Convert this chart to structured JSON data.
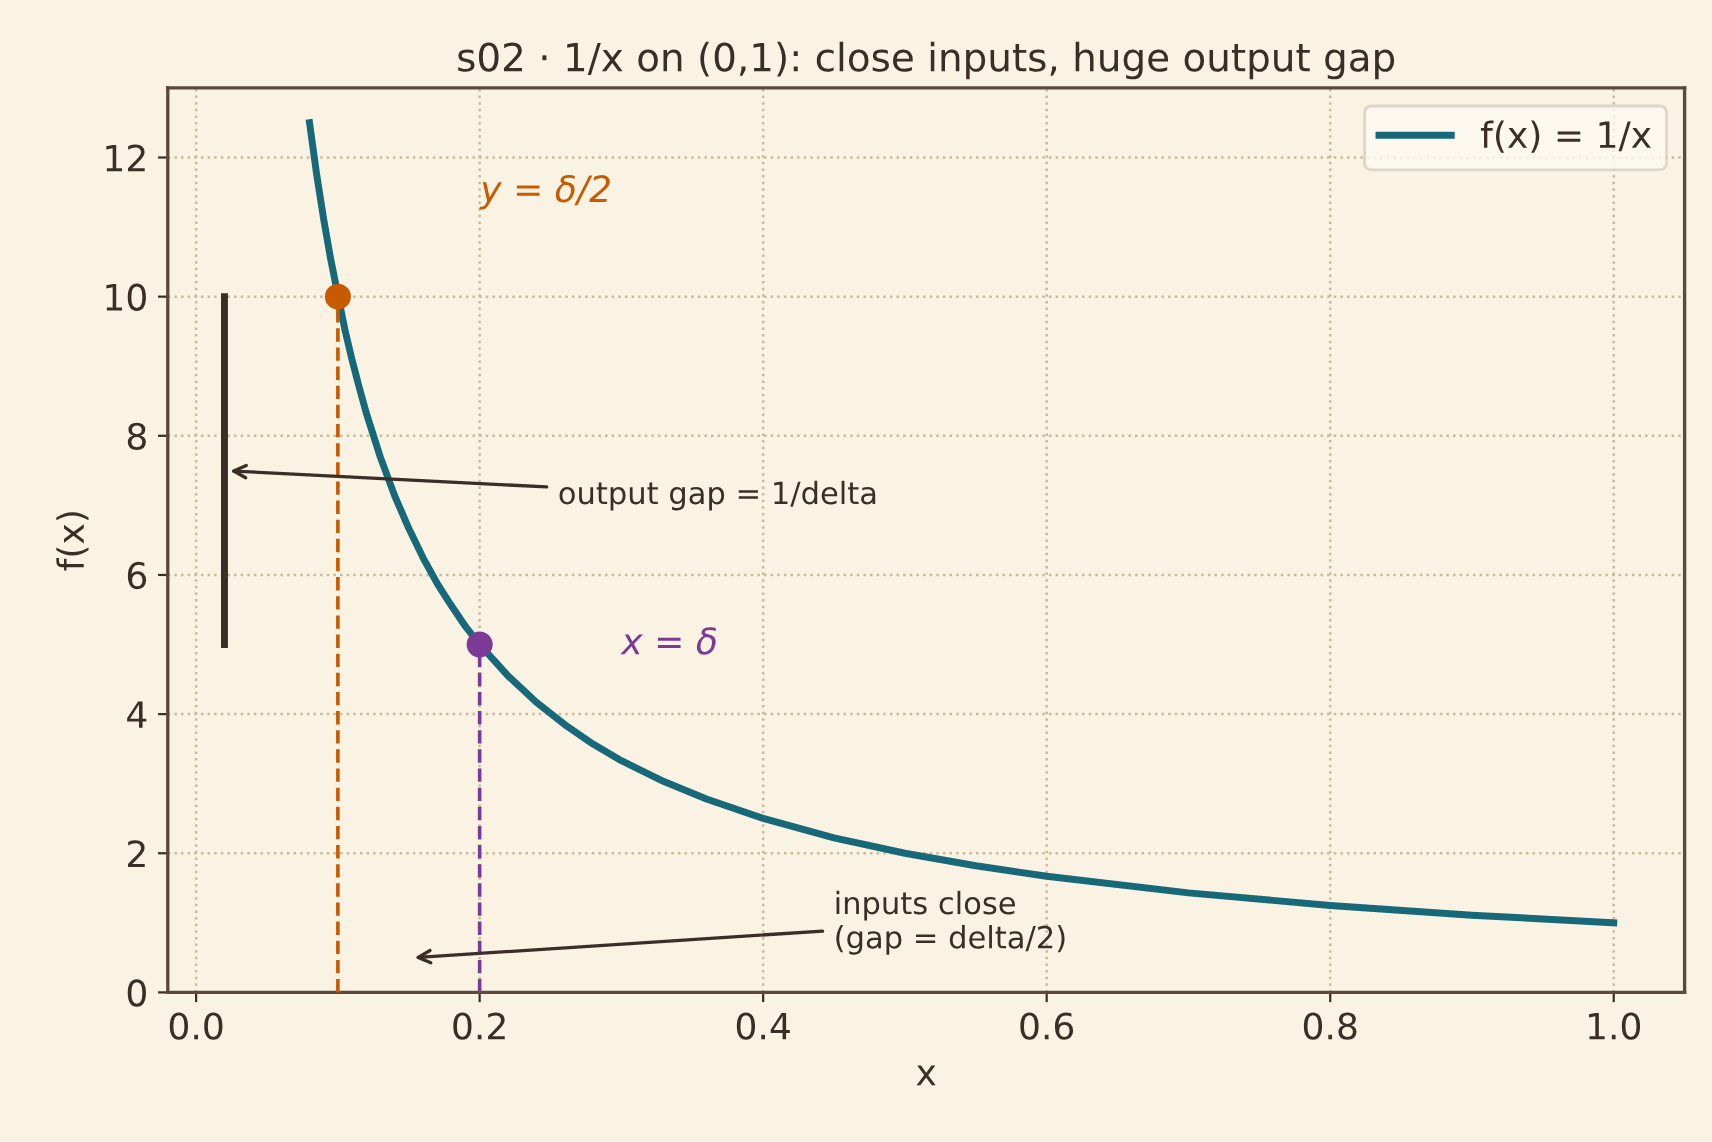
{
  "chart_data": {
    "type": "line",
    "title": "s02 · 1/x on (0,1): close inputs, huge output gap",
    "xlabel": "x",
    "ylabel": "f(x)",
    "series": [
      {
        "name": "f(x) = 1/x",
        "color": "#17697a",
        "line_style": "solid",
        "x": [
          0.08,
          0.085,
          0.09,
          0.095,
          0.105,
          0.11,
          0.115,
          0.12,
          0.13,
          0.14,
          0.15,
          0.16,
          0.17,
          0.18,
          0.19,
          0.2,
          0.22,
          0.24,
          0.26,
          0.28,
          0.3,
          0.33,
          0.36,
          0.4,
          0.45,
          0.5,
          0.55,
          0.6,
          0.7,
          0.8,
          0.9,
          1.0
        ],
        "values": [
          12.5,
          11.76,
          11.11,
          10.53,
          9.52,
          9.09,
          8.7,
          8.33,
          7.69,
          7.14,
          6.67,
          6.25,
          5.88,
          5.56,
          5.26,
          5,
          4.55,
          4.17,
          3.85,
          3.57,
          3.33,
          3.03,
          2.78,
          2.5,
          2.22,
          2,
          1.82,
          1.67,
          1.43,
          1.25,
          1.11,
          1
        ]
      },
      {
        "color": "#c85a00",
        "line_style": "dashed",
        "x": [
          0.1,
          0.1
        ],
        "values": [
          0,
          10
        ]
      },
      {
        "color": "#7b3a96",
        "line_style": "dashed",
        "x": [
          0.2,
          0.2
        ],
        "values": [
          0,
          5
        ]
      },
      {
        "color": "#3a2e26",
        "line_style": "solid",
        "x": [
          0.02,
          0.02
        ],
        "values": [
          5,
          10
        ]
      },
      {
        "type": "scatter",
        "color": "#c85a00",
        "marker": "circle",
        "x": [
          0.1
        ],
        "values": [
          10
        ]
      },
      {
        "type": "scatter",
        "color": "#7b3a96",
        "marker": "circle",
        "x": [
          0.2
        ],
        "values": [
          5
        ]
      }
    ],
    "annotations": [
      "y = δ/2",
      "x = δ",
      {
        "text": "output gap = 1/delta",
        "x": 0.02,
        "y": 7.5
      },
      "inputs close\n(gap = delta/2)"
    ],
    "xlim": [
      -0.02,
      1.05
    ],
    "ylim": [
      0,
      13
    ],
    "xticks": [
      {
        "value": 0,
        "label": "0.0"
      },
      {
        "value": 0.2,
        "label": "0.2"
      },
      {
        "value": 0.4,
        "label": "0.4"
      },
      {
        "value": 0.6,
        "label": "0.6"
      },
      {
        "value": 0.8,
        "label": "0.8"
      },
      {
        "value": 1,
        "label": "1.0"
      }
    ],
    "yticks": [
      0,
      2,
      4,
      6,
      8,
      10,
      12
    ],
    "grid": true,
    "legend": "top right"
  }
}
